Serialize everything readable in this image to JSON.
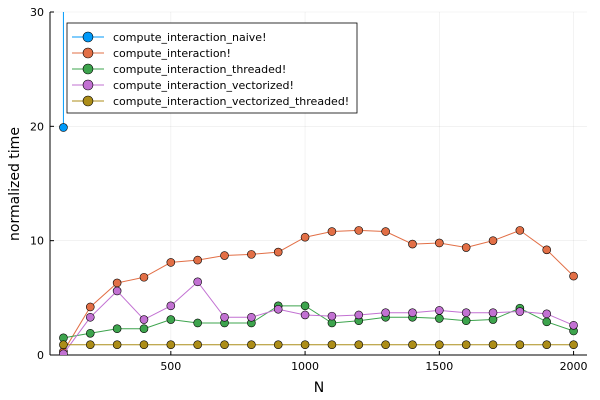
{
  "chart_data": {
    "type": "line",
    "xlabel": "N",
    "ylabel": "normalized time",
    "xlim": [
      50,
      2050
    ],
    "ylim": [
      0,
      30
    ],
    "xticks": [
      500,
      1000,
      1500,
      2000
    ],
    "yticks": [
      0,
      10,
      20,
      30
    ],
    "grid": true,
    "legend_position": "top-left",
    "x": [
      100,
      200,
      300,
      400,
      500,
      600,
      700,
      800,
      900,
      1000,
      1100,
      1200,
      1300,
      1400,
      1500,
      1600,
      1700,
      1800,
      1900,
      2000
    ],
    "series": [
      {
        "name": "compute_interaction_naive!",
        "color": "#009af9",
        "x": [
          100
        ],
        "values": [
          19.9
        ],
        "continues_above_top": true
      },
      {
        "name": "compute_interaction!",
        "color": "#e26f46",
        "values": [
          0.3,
          4.2,
          6.3,
          6.8,
          8.1,
          8.3,
          8.7,
          8.8,
          9.0,
          10.3,
          10.8,
          10.9,
          10.8,
          9.7,
          9.8,
          9.4,
          10.0,
          10.9,
          9.2,
          6.9
        ]
      },
      {
        "name": "compute_interaction_threaded!",
        "color": "#3da44d",
        "values": [
          1.5,
          1.9,
          2.3,
          2.3,
          3.1,
          2.8,
          2.8,
          2.8,
          4.3,
          4.3,
          2.8,
          3.0,
          3.3,
          3.3,
          3.2,
          3.0,
          3.1,
          4.1,
          2.9,
          2.1
        ]
      },
      {
        "name": "compute_interaction_vectorized!",
        "color": "#c271d2",
        "values": [
          0.1,
          3.3,
          5.6,
          3.1,
          4.3,
          6.4,
          3.3,
          3.3,
          4.0,
          3.5,
          3.4,
          3.5,
          3.7,
          3.7,
          3.9,
          3.7,
          3.7,
          3.8,
          3.6,
          2.6
        ]
      },
      {
        "name": "compute_interaction_vectorized_threaded!",
        "color": "#ac8d18",
        "values": [
          0.9,
          0.9,
          0.9,
          0.9,
          0.9,
          0.9,
          0.9,
          0.9,
          0.9,
          0.9,
          0.9,
          0.9,
          0.9,
          0.9,
          0.9,
          0.9,
          0.9,
          0.9,
          0.9,
          0.9
        ]
      }
    ]
  }
}
